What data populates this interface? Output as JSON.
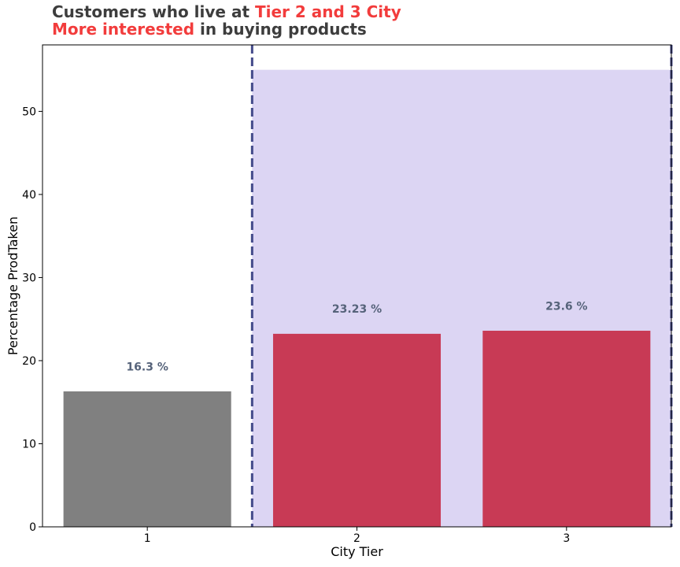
{
  "title": {
    "line1_prefix": "Customers who live at ",
    "line1_highlight": "Tier 2 and 3 City",
    "line2_highlight": "More interested",
    "line2_suffix": " in buying products",
    "text_color": "#3d3d3d",
    "highlight_color": "#f23c3c"
  },
  "chart_data": {
    "type": "bar",
    "categories": [
      "1",
      "2",
      "3"
    ],
    "values": [
      16.3,
      23.23,
      23.6
    ],
    "data_labels": [
      "16.3 %",
      "23.23 %",
      "23.6 %"
    ],
    "bar_colors": [
      "#808080",
      "#c83a55",
      "#c83a55"
    ],
    "label_color": "#56637a",
    "xlabel": "City Tier",
    "ylabel": "Percentage ProdTaken",
    "ylim": [
      0,
      58
    ],
    "yticks": [
      0,
      10,
      20,
      30,
      40,
      50
    ],
    "grid": false,
    "highlight_region": {
      "from_category": "2",
      "to_category": "3",
      "top_value": 55,
      "fill_color": "#dcd5f3",
      "line_color": "#434a8a",
      "line_style": "dashed"
    }
  }
}
